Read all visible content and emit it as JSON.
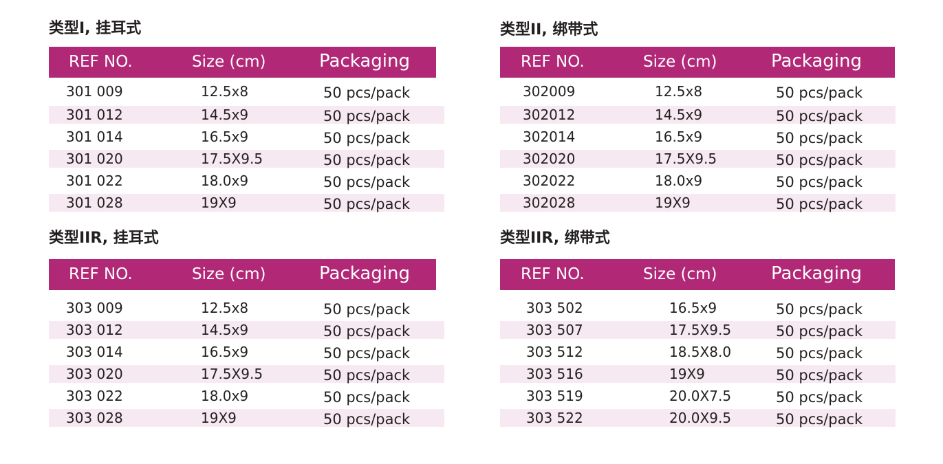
{
  "tables": [
    {
      "title": "类型I, 挂耳式",
      "headers": {
        "ref": "REF NO.",
        "size": "Size (cm)",
        "packaging": "Packaging"
      },
      "rows": [
        {
          "ref": "301 009",
          "size": "12.5x8",
          "packaging": "50 pcs/pack"
        },
        {
          "ref": "301 012",
          "size": "14.5x9",
          "packaging": "50 pcs/pack"
        },
        {
          "ref": "301 014",
          "size": "16.5x9",
          "packaging": "50 pcs/pack"
        },
        {
          "ref": "301 020",
          "size": "17.5X9.5",
          "packaging": "50 pcs/pack"
        },
        {
          "ref": "301 022",
          "size": "18.0x9",
          "packaging": "50 pcs/pack"
        },
        {
          "ref": "301 028",
          "size": "19X9",
          "packaging": "50 pcs/pack"
        }
      ]
    },
    {
      "title": "类型II, 绑带式",
      "headers": {
        "ref": "REF NO.",
        "size": "Size (cm)",
        "packaging": "Packaging"
      },
      "rows": [
        {
          "ref": "302009",
          "size": "12.5x8",
          "packaging": "50 pcs/pack"
        },
        {
          "ref": "302012",
          "size": "14.5x9",
          "packaging": "50 pcs/pack"
        },
        {
          "ref": "302014",
          "size": "16.5x9",
          "packaging": "50 pcs/pack"
        },
        {
          "ref": "302020",
          "size": "17.5X9.5",
          "packaging": "50 pcs/pack"
        },
        {
          "ref": "302022",
          "size": "18.0x9",
          "packaging": "50 pcs/pack"
        },
        {
          "ref": "302028",
          "size": "19X9",
          "packaging": "50 pcs/pack"
        }
      ]
    },
    {
      "title": "类型IIR, 挂耳式",
      "headers": {
        "ref": "REF NO.",
        "size": "Size (cm)",
        "packaging": "Packaging"
      },
      "rows": [
        {
          "ref": "303 009",
          "size": "12.5x8",
          "packaging": "50 pcs/pack"
        },
        {
          "ref": "303 012",
          "size": "14.5x9",
          "packaging": "50 pcs/pack"
        },
        {
          "ref": "303 014",
          "size": "16.5x9",
          "packaging": "50 pcs/pack"
        },
        {
          "ref": "303 020",
          "size": "17.5X9.5",
          "packaging": "50 pcs/pack"
        },
        {
          "ref": "303 022",
          "size": "18.0x9",
          "packaging": "50 pcs/pack"
        },
        {
          "ref": "303 028",
          "size": "19X9",
          "packaging": "50 pcs/pack"
        }
      ]
    },
    {
      "title": "类型IIR, 绑带式",
      "headers": {
        "ref": "REF NO.",
        "size": "Size (cm)",
        "packaging": "Packaging"
      },
      "rows": [
        {
          "ref": "303 502",
          "size": "16.5x9",
          "packaging": "50 pcs/pack"
        },
        {
          "ref": "303 507",
          "size": "17.5X9.5",
          "packaging": "50 pcs/pack"
        },
        {
          "ref": "303 512",
          "size": "18.5X8.0",
          "packaging": "50 pcs/pack"
        },
        {
          "ref": "303 516",
          "size": "19X9",
          "packaging": "50 pcs/pack"
        },
        {
          "ref": "303 519",
          "size": "20.0X7.5",
          "packaging": "50 pcs/pack"
        },
        {
          "ref": "303 522",
          "size": "20.0X9.5",
          "packaging": "50 pcs/pack"
        }
      ]
    }
  ],
  "colors": {
    "header_bg": "#b12877",
    "header_text": "#ffffff",
    "row_shade": "#f6e9f1",
    "text": "#231f20"
  }
}
